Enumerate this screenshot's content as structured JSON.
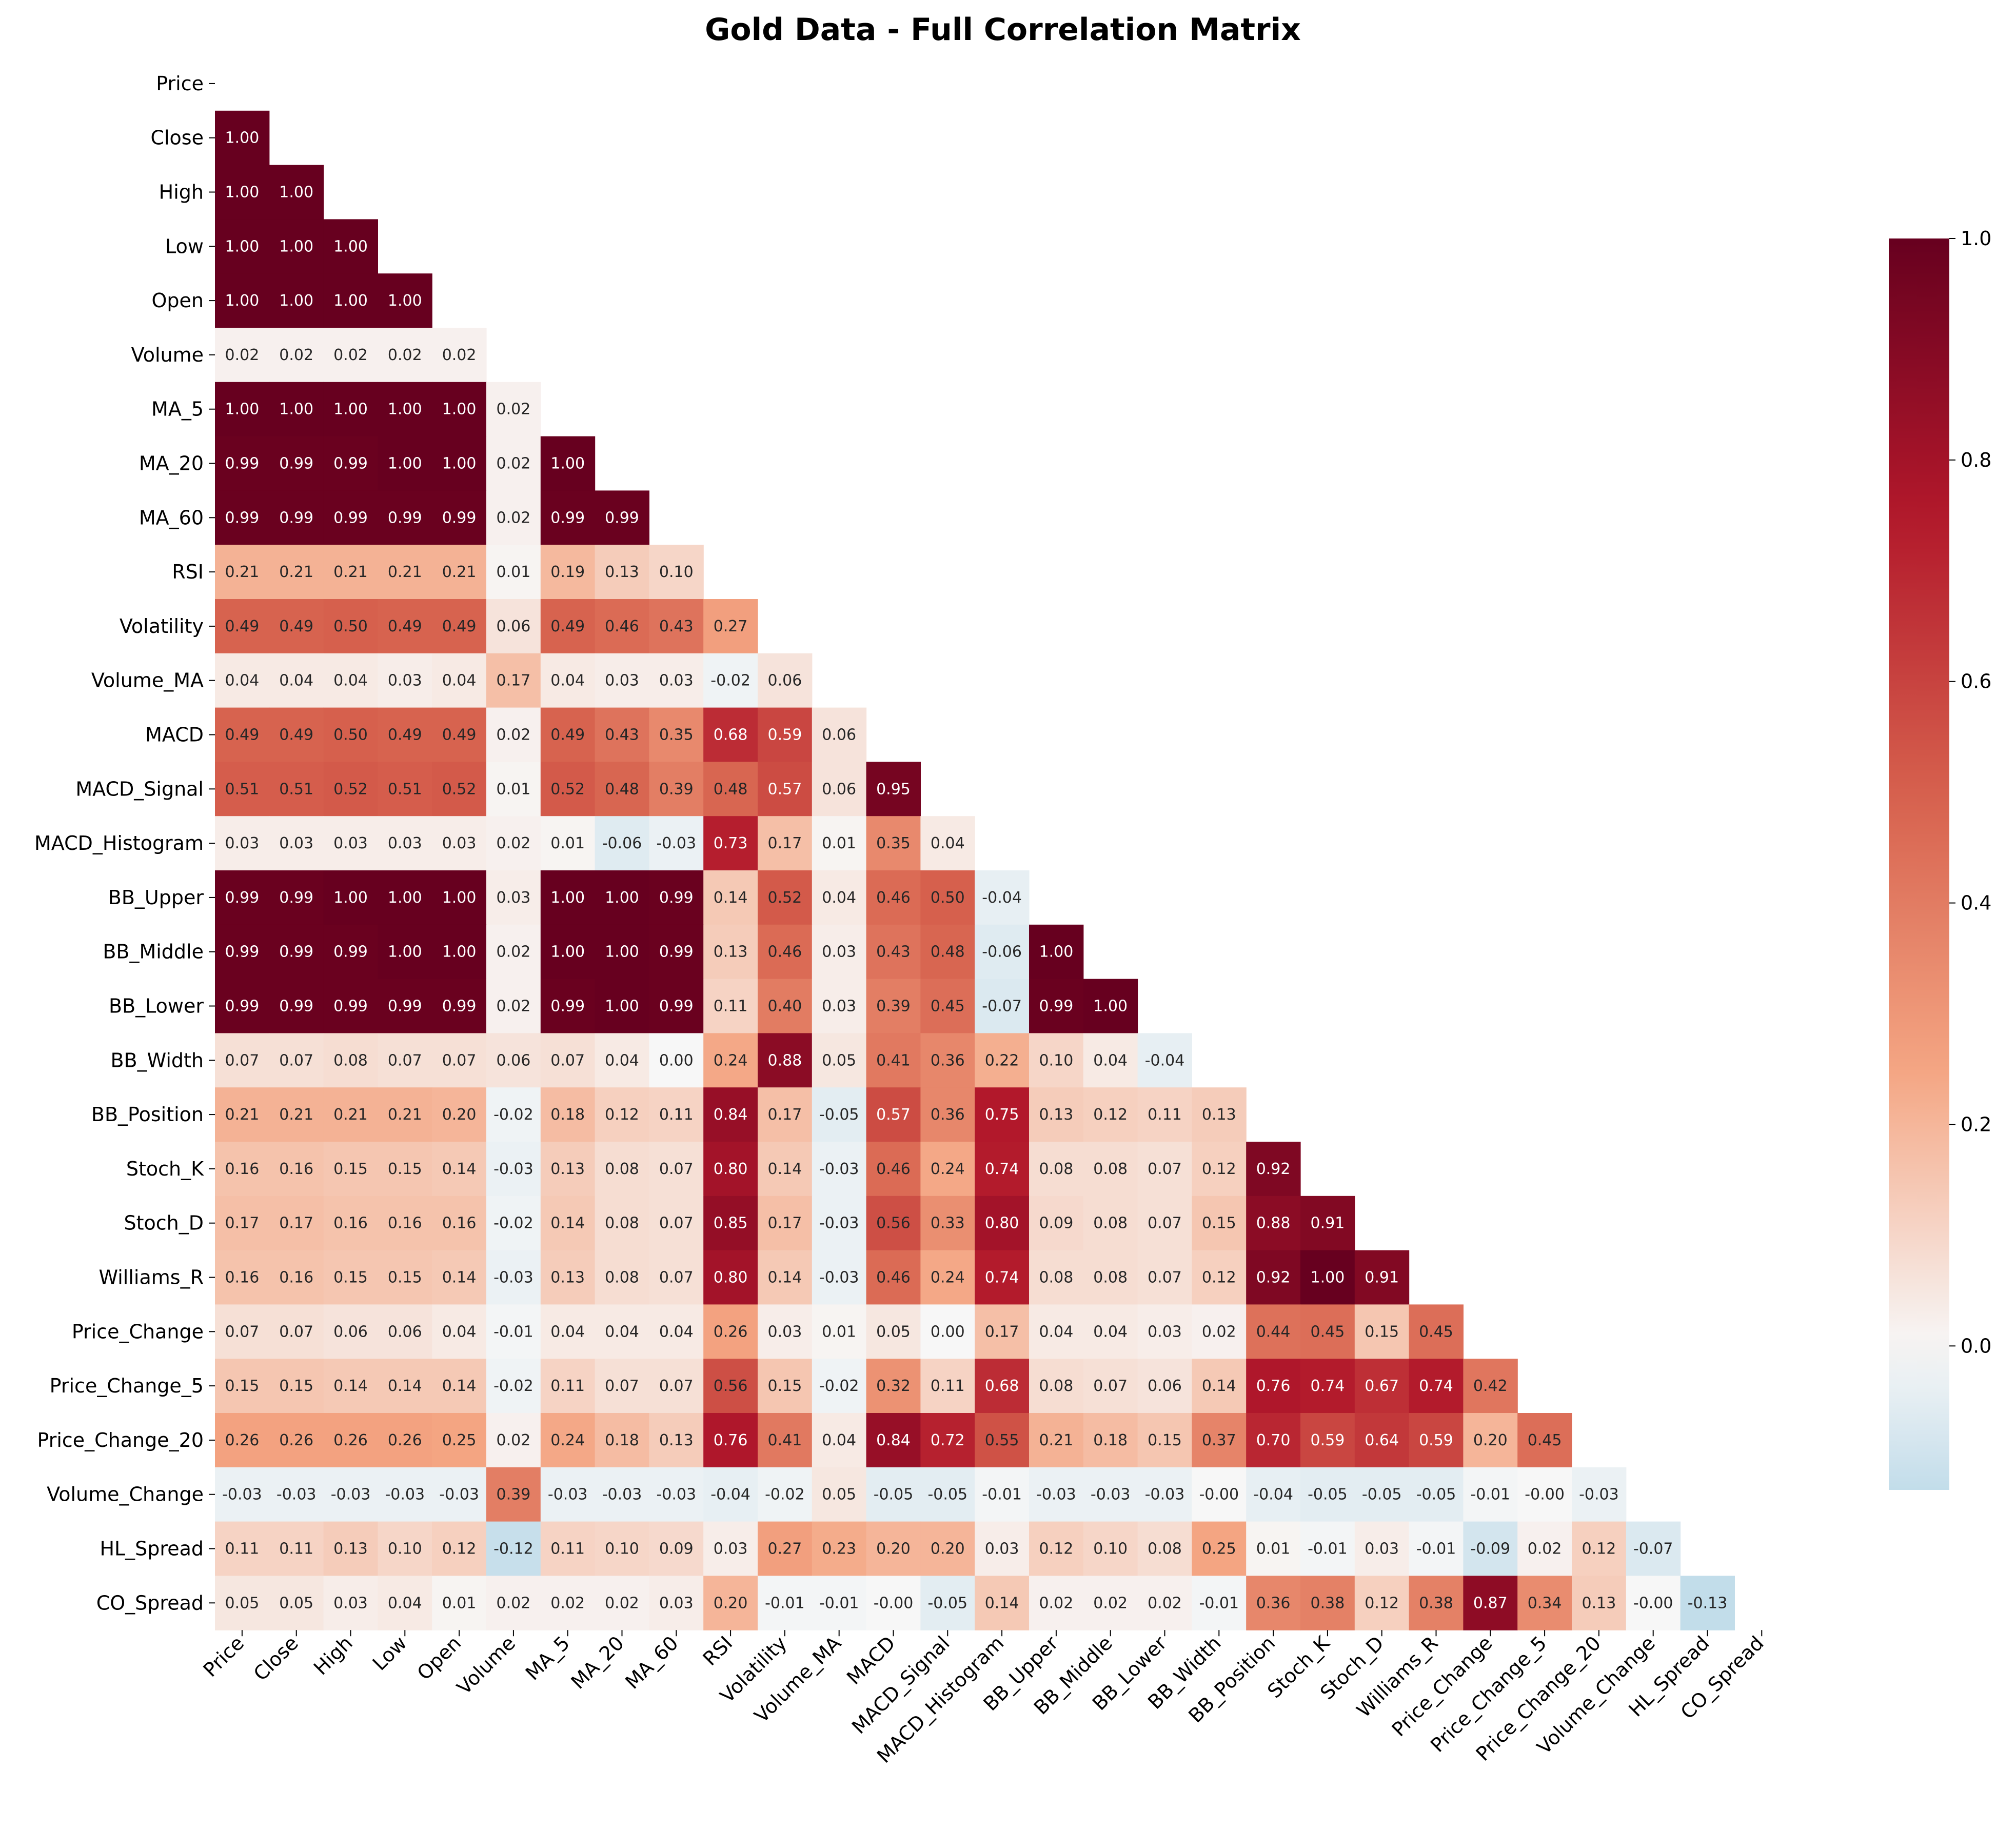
{
  "chart_data": {
    "type": "heatmap",
    "title": "Gold Data - Full Correlation Matrix",
    "variables": [
      "Price",
      "Close",
      "High",
      "Low",
      "Open",
      "Volume",
      "MA_5",
      "MA_20",
      "MA_60",
      "RSI",
      "Volatility",
      "Volume_MA",
      "MACD",
      "MACD_Signal",
      "MACD_Histogram",
      "BB_Upper",
      "BB_Middle",
      "BB_Lower",
      "BB_Width",
      "BB_Position",
      "Stoch_K",
      "Stoch_D",
      "Williams_R",
      "Price_Change",
      "Price_Change_5",
      "Price_Change_20",
      "Volume_Change",
      "HL_Spread",
      "CO_Spread"
    ],
    "mask": "upper-triangle-including-diagonal",
    "lower_triangle_rows": [
      [],
      [
        1.0
      ],
      [
        1.0,
        1.0
      ],
      [
        1.0,
        1.0,
        1.0
      ],
      [
        1.0,
        1.0,
        1.0,
        1.0
      ],
      [
        0.02,
        0.02,
        0.02,
        0.02,
        0.02
      ],
      [
        1.0,
        1.0,
        1.0,
        1.0,
        1.0,
        0.02
      ],
      [
        0.99,
        0.99,
        0.99,
        1.0,
        1.0,
        0.02,
        1.0
      ],
      [
        0.99,
        0.99,
        0.99,
        0.99,
        0.99,
        0.02,
        0.99,
        0.99
      ],
      [
        0.21,
        0.21,
        0.21,
        0.21,
        0.21,
        0.01,
        0.19,
        0.13,
        0.1
      ],
      [
        0.49,
        0.49,
        0.5,
        0.49,
        0.49,
        0.06,
        0.49,
        0.46,
        0.43,
        0.27
      ],
      [
        0.04,
        0.04,
        0.04,
        0.03,
        0.04,
        0.17,
        0.04,
        0.03,
        0.03,
        -0.02,
        0.06
      ],
      [
        0.49,
        0.49,
        0.5,
        0.49,
        0.49,
        0.02,
        0.49,
        0.43,
        0.35,
        0.68,
        0.59,
        0.06
      ],
      [
        0.51,
        0.51,
        0.52,
        0.51,
        0.52,
        0.01,
        0.52,
        0.48,
        0.39,
        0.48,
        0.57,
        0.06,
        0.95
      ],
      [
        0.03,
        0.03,
        0.03,
        0.03,
        0.03,
        0.02,
        0.01,
        -0.06,
        -0.03,
        0.73,
        0.17,
        0.01,
        0.35,
        0.04
      ],
      [
        0.99,
        0.99,
        1.0,
        1.0,
        1.0,
        0.03,
        1.0,
        1.0,
        0.99,
        0.14,
        0.52,
        0.04,
        0.46,
        0.5,
        -0.04
      ],
      [
        0.99,
        0.99,
        0.99,
        1.0,
        1.0,
        0.02,
        1.0,
        1.0,
        0.99,
        0.13,
        0.46,
        0.03,
        0.43,
        0.48,
        -0.06,
        1.0
      ],
      [
        0.99,
        0.99,
        0.99,
        0.99,
        0.99,
        0.02,
        0.99,
        1.0,
        0.99,
        0.11,
        0.4,
        0.03,
        0.39,
        0.45,
        -0.07,
        0.99,
        1.0
      ],
      [
        0.07,
        0.07,
        0.08,
        0.07,
        0.07,
        0.06,
        0.07,
        0.04,
        0.0,
        0.24,
        0.88,
        0.05,
        0.41,
        0.36,
        0.22,
        0.1,
        0.04,
        -0.04
      ],
      [
        0.21,
        0.21,
        0.21,
        0.21,
        0.2,
        -0.02,
        0.18,
        0.12,
        0.11,
        0.84,
        0.17,
        -0.05,
        0.57,
        0.36,
        0.75,
        0.13,
        0.12,
        0.11,
        0.13
      ],
      [
        0.16,
        0.16,
        0.15,
        0.15,
        0.14,
        -0.03,
        0.13,
        0.08,
        0.07,
        0.8,
        0.14,
        -0.03,
        0.46,
        0.24,
        0.74,
        0.08,
        0.08,
        0.07,
        0.12,
        0.92
      ],
      [
        0.17,
        0.17,
        0.16,
        0.16,
        0.16,
        -0.02,
        0.14,
        0.08,
        0.07,
        0.85,
        0.17,
        -0.03,
        0.56,
        0.33,
        0.8,
        0.09,
        0.08,
        0.07,
        0.15,
        0.88,
        0.91
      ],
      [
        0.16,
        0.16,
        0.15,
        0.15,
        0.14,
        -0.03,
        0.13,
        0.08,
        0.07,
        0.8,
        0.14,
        -0.03,
        0.46,
        0.24,
        0.74,
        0.08,
        0.08,
        0.07,
        0.12,
        0.92,
        1.0,
        0.91
      ],
      [
        0.07,
        0.07,
        0.06,
        0.06,
        0.04,
        -0.01,
        0.04,
        0.04,
        0.04,
        0.26,
        0.03,
        0.01,
        0.05,
        0.0,
        0.17,
        0.04,
        0.04,
        0.03,
        0.02,
        0.44,
        0.45,
        0.15,
        0.45
      ],
      [
        0.15,
        0.15,
        0.14,
        0.14,
        0.14,
        -0.02,
        0.11,
        0.07,
        0.07,
        0.56,
        0.15,
        -0.02,
        0.32,
        0.11,
        0.68,
        0.08,
        0.07,
        0.06,
        0.14,
        0.76,
        0.74,
        0.67,
        0.74,
        0.42
      ],
      [
        0.26,
        0.26,
        0.26,
        0.26,
        0.25,
        0.02,
        0.24,
        0.18,
        0.13,
        0.76,
        0.41,
        0.04,
        0.84,
        0.72,
        0.55,
        0.21,
        0.18,
        0.15,
        0.37,
        0.7,
        0.59,
        0.64,
        0.59,
        0.2,
        0.45
      ],
      [
        -0.03,
        -0.03,
        -0.03,
        -0.03,
        -0.03,
        0.39,
        -0.03,
        -0.03,
        -0.03,
        -0.04,
        -0.02,
        0.05,
        -0.05,
        -0.05,
        -0.01,
        -0.03,
        -0.03,
        -0.03,
        -0.0,
        -0.04,
        -0.05,
        -0.05,
        -0.05,
        -0.01,
        -0.0,
        -0.03
      ],
      [
        0.11,
        0.11,
        0.13,
        0.1,
        0.12,
        -0.12,
        0.11,
        0.1,
        0.09,
        0.03,
        0.27,
        0.23,
        0.2,
        0.2,
        0.03,
        0.12,
        0.1,
        0.08,
        0.25,
        0.01,
        -0.01,
        0.03,
        -0.01,
        -0.09,
        0.02,
        0.12,
        -0.07
      ],
      [
        0.05,
        0.05,
        0.03,
        0.04,
        0.01,
        0.02,
        0.02,
        0.02,
        0.03,
        0.2,
        -0.01,
        -0.01,
        -0.0,
        -0.05,
        0.14,
        0.02,
        0.02,
        0.02,
        -0.01,
        0.36,
        0.38,
        0.12,
        0.38,
        0.87,
        0.34,
        0.13,
        -0.0,
        -0.13
      ]
    ],
    "colormap": "RdBu_r",
    "colorbar": {
      "ticks": [
        "0.0",
        "0.2",
        "0.4",
        "0.6",
        "0.8",
        "1.0"
      ],
      "range": [
        -0.13,
        1.0
      ]
    },
    "xlabel": "",
    "ylabel": ""
  }
}
